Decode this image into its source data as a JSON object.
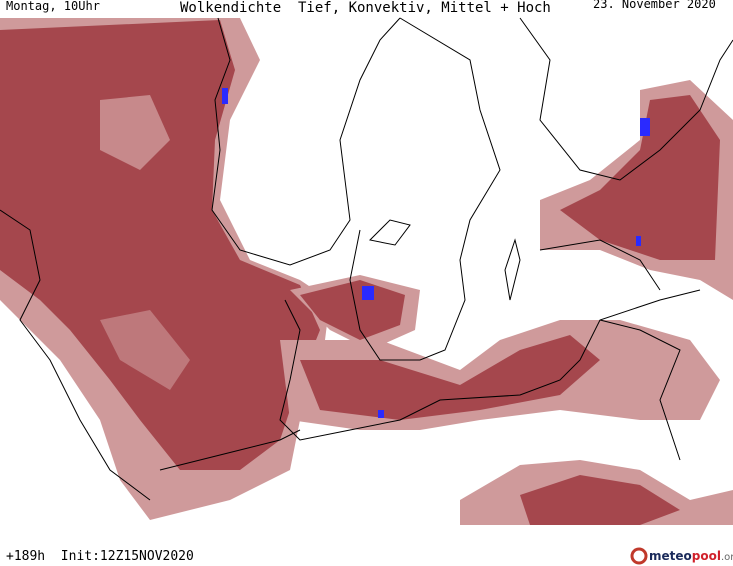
{
  "header": {
    "left": "Montag, 10Uhr",
    "title": "Wolkendichte  Tief, Konvektiv, Mittel + Hoch",
    "right": "23. November 2020"
  },
  "footer": {
    "run": "+189h  Init:12Z15NOV2020",
    "logo": {
      "part1": "meteo",
      "part2": "pool",
      "part3": ".org"
    }
  }
}
